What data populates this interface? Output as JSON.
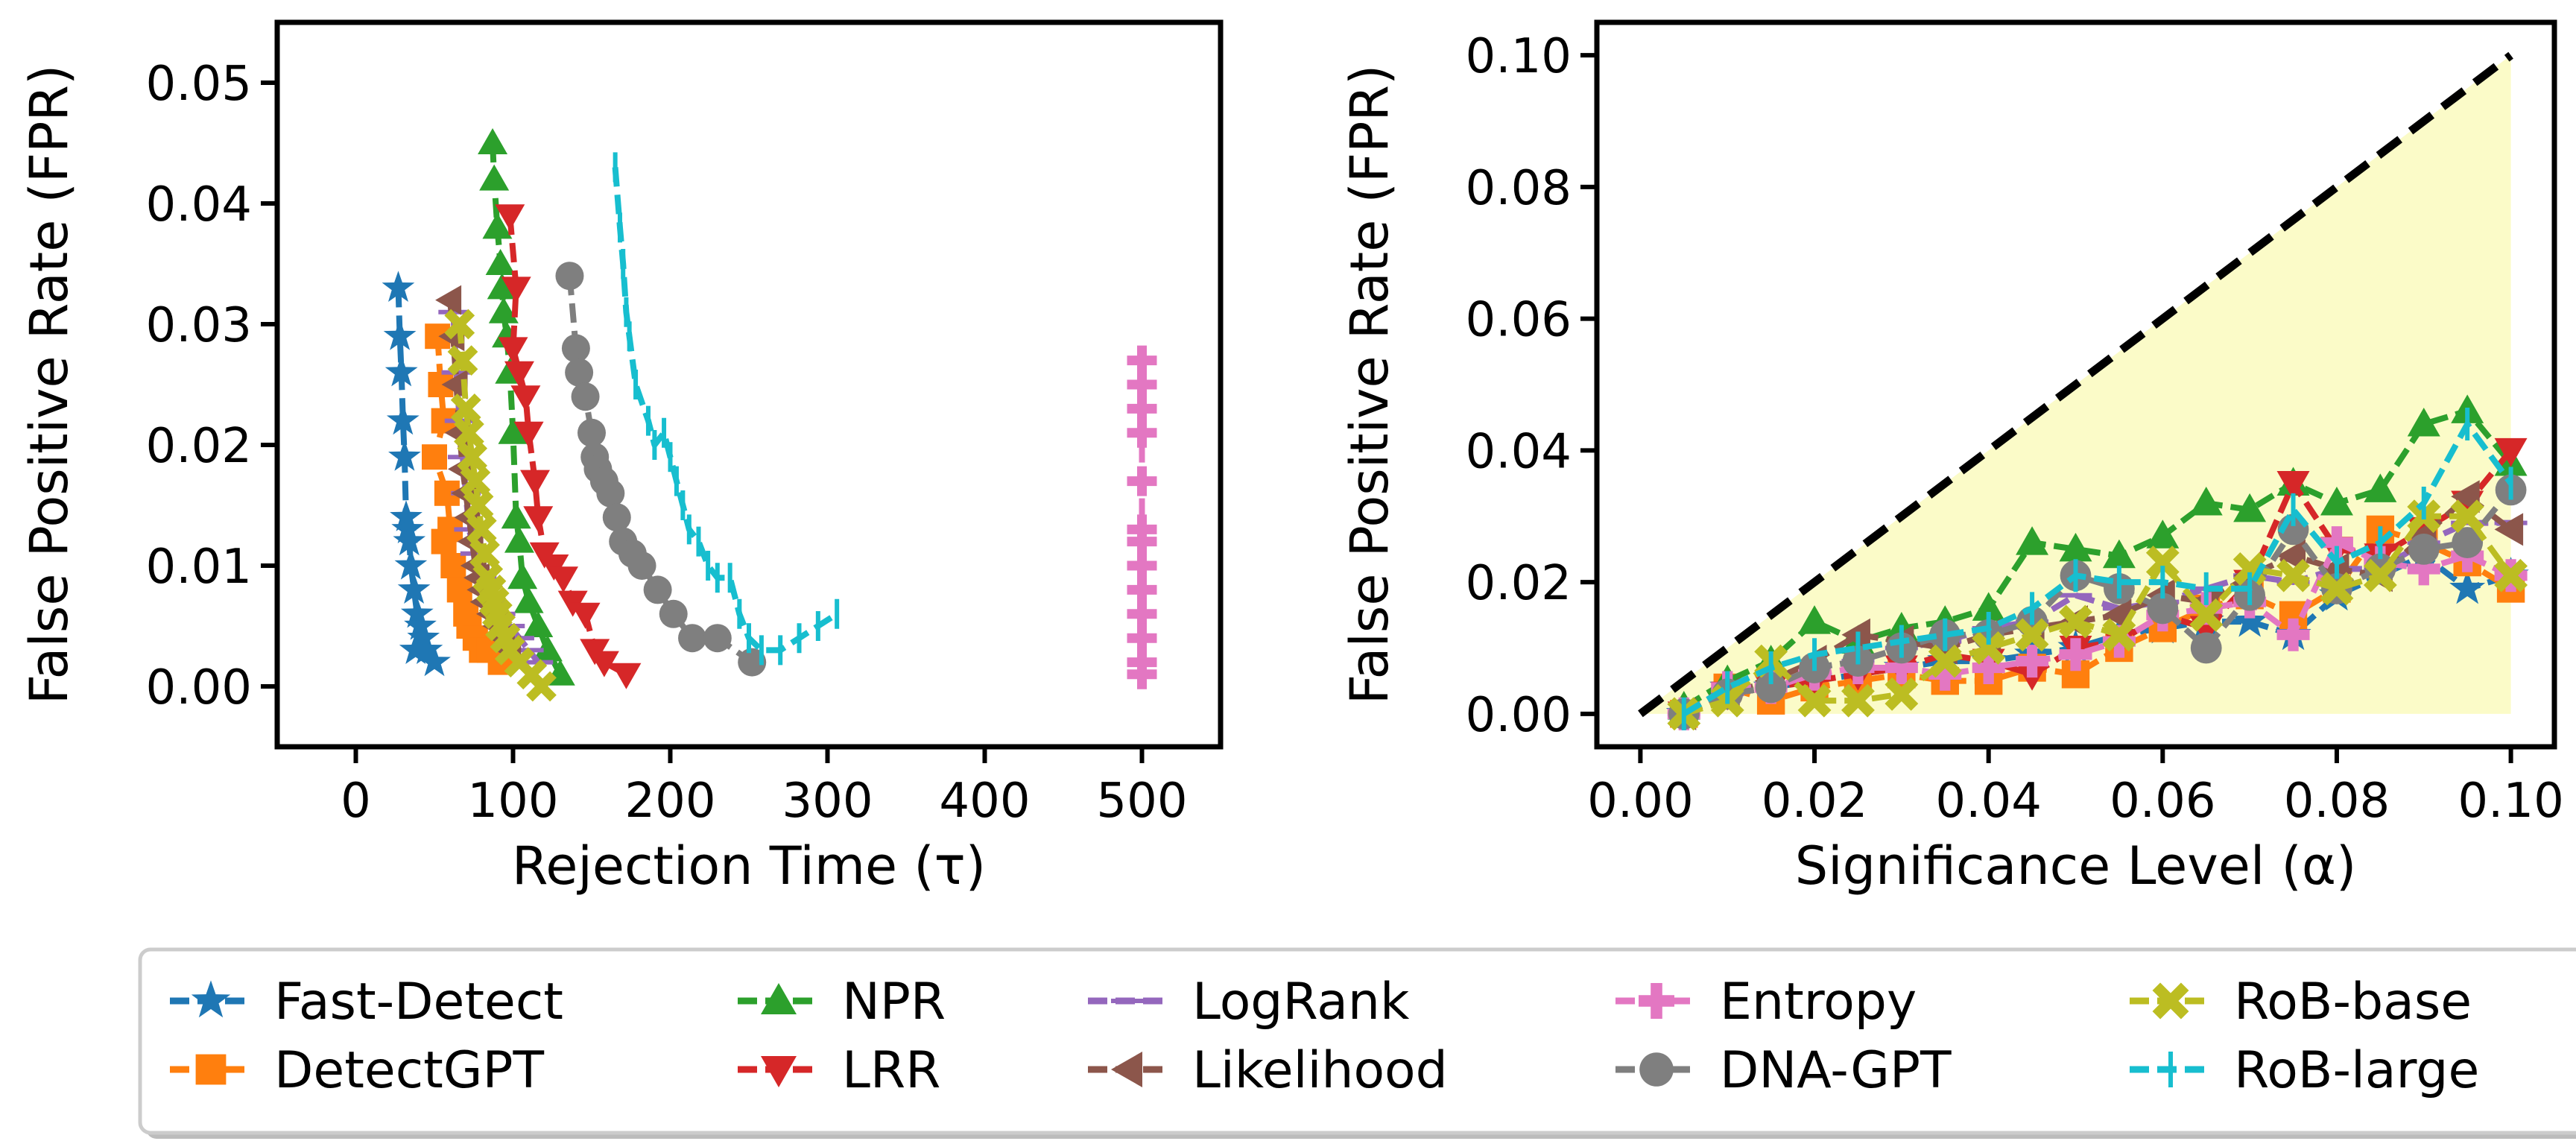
{
  "series_styles": [
    {
      "name": "Fast-Detect",
      "color": "#1f77b4",
      "marker": "star"
    },
    {
      "name": "DetectGPT",
      "color": "#ff7f0e",
      "marker": "square"
    },
    {
      "name": "NPR",
      "color": "#2ca02c",
      "marker": "triangle-up"
    },
    {
      "name": "LRR",
      "color": "#d62728",
      "marker": "triangle-down"
    },
    {
      "name": "LogRank",
      "color": "#9467bd",
      "marker": "hline"
    },
    {
      "name": "Likelihood",
      "color": "#8c564b",
      "marker": "triangle-left"
    },
    {
      "name": "Entropy",
      "color": "#e377c2",
      "marker": "plus"
    },
    {
      "name": "DNA-GPT",
      "color": "#7f7f7f",
      "marker": "circle"
    },
    {
      "name": "RoB-base",
      "color": "#bcbd22",
      "marker": "x"
    },
    {
      "name": "RoB-large",
      "color": "#17becf",
      "marker": "vline"
    }
  ],
  "chart_data": [
    {
      "type": "line",
      "xlabel": "Rejection Time (τ)",
      "ylabel": "False Positive Rate (FPR)",
      "xlim": [
        -50,
        550
      ],
      "ylim": [
        -0.005,
        0.055
      ],
      "xticks": [
        0,
        100,
        200,
        300,
        400,
        500
      ],
      "xtick_labels": [
        "0",
        "100",
        "200",
        "300",
        "400",
        "500"
      ],
      "yticks": [
        0.0,
        0.01,
        0.02,
        0.03,
        0.04,
        0.05
      ],
      "ytick_labels": [
        "0.00",
        "0.01",
        "0.02",
        "0.03",
        "0.04",
        "0.05"
      ],
      "grid": false,
      "series": [
        {
          "name": "Fast-Detect",
          "points": [
            [
              27,
              0.033
            ],
            [
              28,
              0.029
            ],
            [
              29,
              0.026
            ],
            [
              30,
              0.022
            ],
            [
              31,
              0.019
            ],
            [
              32,
              0.014
            ],
            [
              33,
              0.013
            ],
            [
              34,
              0.012
            ],
            [
              35,
              0.01
            ],
            [
              37,
              0.008
            ],
            [
              39,
              0.006
            ],
            [
              41,
              0.005
            ],
            [
              43,
              0.004
            ],
            [
              38,
              0.003
            ],
            [
              45,
              0.003
            ],
            [
              50,
              0.002
            ]
          ]
        },
        {
          "name": "DetectGPT",
          "points": [
            [
              52,
              0.029
            ],
            [
              54,
              0.025
            ],
            [
              56,
              0.022
            ],
            [
              50,
              0.019
            ],
            [
              58,
              0.016
            ],
            [
              60,
              0.013
            ],
            [
              56,
              0.012
            ],
            [
              62,
              0.01
            ],
            [
              66,
              0.008
            ],
            [
              70,
              0.006
            ],
            [
              72,
              0.005
            ],
            [
              76,
              0.004
            ],
            [
              80,
              0.003
            ],
            [
              85,
              0.003
            ],
            [
              92,
              0.002
            ]
          ]
        },
        {
          "name": "NPR",
          "points": [
            [
              87,
              0.045
            ],
            [
              88,
              0.042
            ],
            [
              90,
              0.038
            ],
            [
              92,
              0.035
            ],
            [
              93,
              0.033
            ],
            [
              94,
              0.031
            ],
            [
              96,
              0.029
            ],
            [
              98,
              0.026
            ],
            [
              100,
              0.021
            ],
            [
              102,
              0.014
            ],
            [
              104,
              0.012
            ],
            [
              106,
              0.009
            ],
            [
              110,
              0.007
            ],
            [
              116,
              0.005
            ],
            [
              122,
              0.003
            ],
            [
              130,
              0.001
            ]
          ]
        },
        {
          "name": "LRR",
          "points": [
            [
              98,
              0.039
            ],
            [
              102,
              0.033
            ],
            [
              100,
              0.028
            ],
            [
              104,
              0.026
            ],
            [
              108,
              0.024
            ],
            [
              110,
              0.021
            ],
            [
              114,
              0.017
            ],
            [
              116,
              0.014
            ],
            [
              120,
              0.011
            ],
            [
              126,
              0.01
            ],
            [
              132,
              0.009
            ],
            [
              138,
              0.007
            ],
            [
              146,
              0.006
            ],
            [
              152,
              0.003
            ],
            [
              158,
              0.002
            ],
            [
              172,
              0.001
            ]
          ]
        },
        {
          "name": "LogRank",
          "points": [
            [
              62,
              0.031
            ],
            [
              64,
              0.026
            ],
            [
              66,
              0.022
            ],
            [
              68,
              0.019
            ],
            [
              70,
              0.016
            ],
            [
              72,
              0.013
            ],
            [
              76,
              0.011
            ],
            [
              80,
              0.009
            ],
            [
              86,
              0.007
            ],
            [
              92,
              0.006
            ],
            [
              98,
              0.005
            ],
            [
              104,
              0.004
            ],
            [
              110,
              0.003
            ],
            [
              116,
              0.002
            ]
          ]
        },
        {
          "name": "Likelihood",
          "points": [
            [
              60,
              0.032
            ],
            [
              62,
              0.029
            ],
            [
              64,
              0.025
            ],
            [
              66,
              0.021
            ],
            [
              68,
              0.018
            ],
            [
              70,
              0.016
            ],
            [
              72,
              0.014
            ],
            [
              74,
              0.012
            ],
            [
              76,
              0.01
            ],
            [
              78,
              0.009
            ],
            [
              80,
              0.008
            ],
            [
              82,
              0.007
            ],
            [
              86,
              0.006
            ],
            [
              90,
              0.005
            ],
            [
              94,
              0.004
            ],
            [
              98,
              0.003
            ]
          ]
        },
        {
          "name": "Entropy",
          "points": [
            [
              500,
              0.027
            ],
            [
              500,
              0.025
            ],
            [
              500,
              0.023
            ],
            [
              500,
              0.021
            ],
            [
              500,
              0.017
            ],
            [
              500,
              0.013
            ],
            [
              500,
              0.012
            ],
            [
              500,
              0.01
            ],
            [
              500,
              0.008
            ],
            [
              500,
              0.006
            ],
            [
              500,
              0.004
            ],
            [
              500,
              0.002
            ],
            [
              500,
              0.001
            ]
          ]
        },
        {
          "name": "DNA-GPT",
          "points": [
            [
              136,
              0.034
            ],
            [
              140,
              0.028
            ],
            [
              142,
              0.026
            ],
            [
              146,
              0.024
            ],
            [
              150,
              0.021
            ],
            [
              152,
              0.019
            ],
            [
              154,
              0.018
            ],
            [
              158,
              0.017
            ],
            [
              162,
              0.016
            ],
            [
              166,
              0.014
            ],
            [
              170,
              0.012
            ],
            [
              176,
              0.011
            ],
            [
              182,
              0.01
            ],
            [
              192,
              0.008
            ],
            [
              202,
              0.006
            ],
            [
              214,
              0.004
            ],
            [
              230,
              0.004
            ],
            [
              252,
              0.002
            ]
          ]
        },
        {
          "name": "RoB-base",
          "points": [
            [
              66,
              0.03
            ],
            [
              68,
              0.027
            ],
            [
              70,
              0.023
            ],
            [
              72,
              0.021
            ],
            [
              74,
              0.019
            ],
            [
              76,
              0.017
            ],
            [
              78,
              0.015
            ],
            [
              80,
              0.013
            ],
            [
              82,
              0.011
            ],
            [
              84,
              0.009
            ],
            [
              86,
              0.008
            ],
            [
              88,
              0.007
            ],
            [
              90,
              0.006
            ],
            [
              92,
              0.005
            ],
            [
              95,
              0.004
            ],
            [
              98,
              0.003
            ],
            [
              104,
              0.002
            ],
            [
              112,
              0.001
            ],
            [
              118,
              0.0
            ]
          ]
        },
        {
          "name": "RoB-large",
          "points": [
            [
              165,
              0.043
            ],
            [
              168,
              0.038
            ],
            [
              170,
              0.035
            ],
            [
              172,
              0.031
            ],
            [
              174,
              0.029
            ],
            [
              178,
              0.025
            ],
            [
              186,
              0.022
            ],
            [
              190,
              0.02
            ],
            [
              196,
              0.021
            ],
            [
              200,
              0.019
            ],
            [
              204,
              0.017
            ],
            [
              208,
              0.015
            ],
            [
              212,
              0.013
            ],
            [
              218,
              0.012
            ],
            [
              224,
              0.01
            ],
            [
              230,
              0.009
            ],
            [
              238,
              0.009
            ],
            [
              244,
              0.006
            ],
            [
              250,
              0.004
            ],
            [
              258,
              0.003
            ],
            [
              270,
              0.003
            ],
            [
              282,
              0.004
            ],
            [
              294,
              0.005
            ],
            [
              306,
              0.006
            ]
          ]
        }
      ]
    },
    {
      "type": "line",
      "xlabel": "Significance Level (α)",
      "ylabel": "False Positive Rate (FPR)",
      "xlim": [
        -0.005,
        0.105
      ],
      "ylim": [
        -0.005,
        0.105
      ],
      "xticks": [
        0.0,
        0.02,
        0.04,
        0.06,
        0.08,
        0.1
      ],
      "xtick_labels": [
        "0.00",
        "0.02",
        "0.04",
        "0.06",
        "0.08",
        "0.10"
      ],
      "yticks": [
        0.0,
        0.02,
        0.04,
        0.06,
        0.08,
        0.1
      ],
      "ytick_labels": [
        "0.00",
        "0.02",
        "0.04",
        "0.06",
        "0.08",
        "0.10"
      ],
      "grid": false,
      "reference_line": {
        "x": [
          0.0,
          0.1
        ],
        "y": [
          0.0,
          0.1
        ],
        "style": "dashed",
        "color": "#000000"
      },
      "shaded_region": {
        "vertices": [
          [
            0.0,
            0.0
          ],
          [
            0.1,
            0.1
          ],
          [
            0.1,
            0.0
          ]
        ],
        "color": "#fbfbc8"
      },
      "alpha": [
        0.005,
        0.01,
        0.015,
        0.02,
        0.025,
        0.03,
        0.035,
        0.04,
        0.045,
        0.05,
        0.055,
        0.06,
        0.065,
        0.07,
        0.075,
        0.08,
        0.085,
        0.09,
        0.095,
        0.1
      ],
      "series": [
        {
          "name": "Fast-Detect",
          "values": [
            0.0,
            0.004,
            0.004,
            0.005,
            0.006,
            0.007,
            0.008,
            0.008,
            0.009,
            0.01,
            0.012,
            0.013,
            0.014,
            0.014,
            0.012,
            0.018,
            0.021,
            0.024,
            0.019,
            0.021
          ]
        },
        {
          "name": "DetectGPT",
          "values": [
            0.0,
            0.004,
            0.002,
            0.004,
            0.005,
            0.006,
            0.005,
            0.005,
            0.007,
            0.006,
            0.01,
            0.013,
            0.016,
            0.018,
            0.015,
            0.019,
            0.028,
            0.026,
            0.023,
            0.019
          ]
        },
        {
          "name": "NPR",
          "values": [
            0.001,
            0.005,
            0.008,
            0.014,
            0.011,
            0.013,
            0.014,
            0.016,
            0.026,
            0.025,
            0.024,
            0.027,
            0.032,
            0.031,
            0.035,
            0.032,
            0.034,
            0.044,
            0.046,
            0.038
          ]
        },
        {
          "name": "LRR",
          "values": [
            0.0,
            0.003,
            0.004,
            0.005,
            0.006,
            0.007,
            0.009,
            0.008,
            0.006,
            0.01,
            0.011,
            0.015,
            0.013,
            0.02,
            0.035,
            0.025,
            0.024,
            0.028,
            0.032,
            0.04
          ]
        },
        {
          "name": "LogRank",
          "values": [
            0.0,
            0.003,
            0.004,
            0.007,
            0.008,
            0.01,
            0.011,
            0.013,
            0.014,
            0.018,
            0.016,
            0.017,
            0.019,
            0.021,
            0.02,
            0.022,
            0.022,
            0.026,
            0.029,
            0.029
          ]
        },
        {
          "name": "Likelihood",
          "values": [
            0.0,
            0.003,
            0.005,
            0.008,
            0.012,
            0.011,
            0.01,
            0.012,
            0.013,
            0.014,
            0.015,
            0.018,
            0.017,
            0.021,
            0.024,
            0.022,
            0.021,
            0.027,
            0.033,
            0.028
          ]
        },
        {
          "name": "Entropy",
          "values": [
            0.0,
            0.004,
            0.004,
            0.006,
            0.007,
            0.007,
            0.006,
            0.007,
            0.008,
            0.009,
            0.011,
            0.015,
            0.016,
            0.017,
            0.012,
            0.026,
            0.023,
            0.022,
            0.024,
            0.021
          ]
        },
        {
          "name": "DNA-GPT",
          "values": [
            0.0,
            0.003,
            0.004,
            0.007,
            0.008,
            0.01,
            0.012,
            0.012,
            0.014,
            0.021,
            0.019,
            0.016,
            0.01,
            0.018,
            0.028,
            0.019,
            0.022,
            0.025,
            0.026,
            0.034
          ]
        },
        {
          "name": "RoB-base",
          "values": [
            0.0,
            0.002,
            0.008,
            0.002,
            0.002,
            0.003,
            0.008,
            0.01,
            0.012,
            0.014,
            0.012,
            0.023,
            0.015,
            0.022,
            0.021,
            0.019,
            0.021,
            0.03,
            0.03,
            0.021
          ]
        },
        {
          "name": "RoB-large",
          "values": [
            0.0,
            0.004,
            0.007,
            0.009,
            0.01,
            0.011,
            0.012,
            0.013,
            0.016,
            0.021,
            0.02,
            0.02,
            0.019,
            0.019,
            0.031,
            0.023,
            0.026,
            0.032,
            0.044,
            0.035
          ]
        }
      ]
    }
  ]
}
